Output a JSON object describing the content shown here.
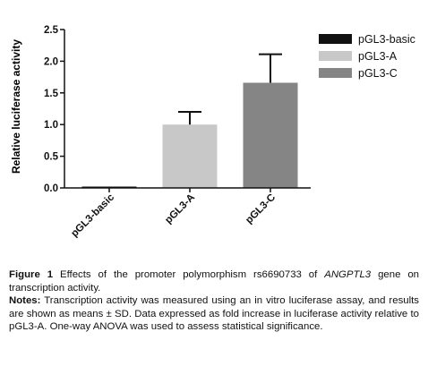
{
  "chart_data": {
    "type": "bar",
    "ylabel": "Relative luciferase activity",
    "ylim": [
      0,
      2.5
    ],
    "yticks": [
      "0.0",
      "0.5",
      "1.0",
      "1.5",
      "2.0",
      "2.5"
    ],
    "categories": [
      "pGL3-basic",
      "pGL3-A",
      "pGL3-C"
    ],
    "values": [
      0.02,
      1.0,
      1.66
    ],
    "errors": [
      0.0,
      0.2,
      0.45
    ],
    "colors": [
      "#111111",
      "#c8c8c8",
      "#858585"
    ],
    "legend": [
      "pGL3-basic",
      "pGL3-A",
      "pGL3-C"
    ],
    "legend_position": "top-right"
  },
  "caption": {
    "figure_label": "Figure 1",
    "title_pre": " Effects of the promoter polymorphism rs6690733 of ",
    "gene": "ANGPTL3",
    "title_post": " gene on transcription activity.",
    "notes_label": "Notes:",
    "notes_text": " Transcription activity was measured using an in vitro luciferase assay, and results are shown as means ± SD. Data expressed as fold increase in luciferase activity relative to pGL3-A. One-way ANOVA was used to assess statistical significance."
  }
}
